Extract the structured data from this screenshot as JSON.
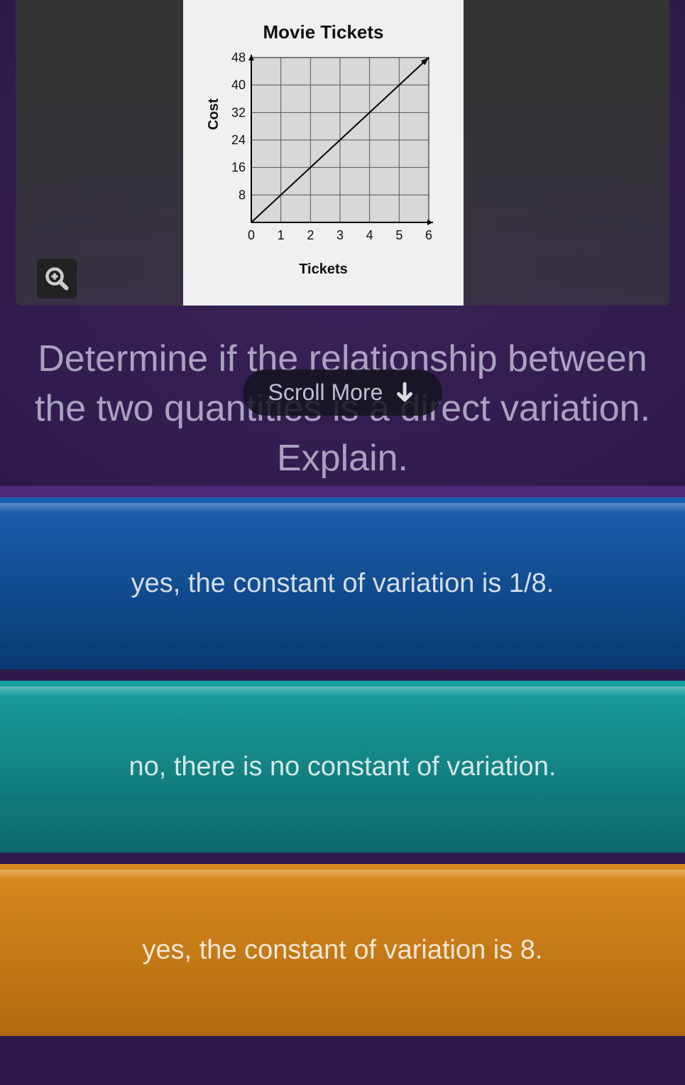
{
  "chart": {
    "type": "line",
    "title": "Movie Tickets",
    "xlabel": "Tickets",
    "ylabel": "Cost",
    "xlim": [
      0,
      6
    ],
    "ylim": [
      0,
      48
    ],
    "xticks": [
      0,
      1,
      2,
      3,
      4,
      5,
      6
    ],
    "yticks": [
      8,
      16,
      24,
      32,
      40,
      48
    ],
    "xtick_labels": [
      "0",
      "1",
      "2",
      "3",
      "4",
      "5",
      "6"
    ],
    "ytick_labels": [
      "8",
      "16",
      "24",
      "32",
      "40",
      "48"
    ],
    "line_points": [
      [
        0,
        0
      ],
      [
        6,
        48
      ]
    ],
    "grid_color": "#555555",
    "line_color": "#000000",
    "background_color": "#f0f0f0",
    "plot_bg_color": "#d8d8d8",
    "line_width": 2,
    "tick_fontsize": 18,
    "label_fontsize": 20,
    "title_fontsize": 26,
    "has_arrow": true
  },
  "question": {
    "text": "Determine if the relationship between the two quantities is a direct variation. Explain."
  },
  "scroll_more": {
    "label": "Scroll More"
  },
  "answers": [
    {
      "text": "yes, the constant of variation is 1/8.",
      "color": "blue"
    },
    {
      "text": "no, there is no constant of variation.",
      "color": "teal"
    },
    {
      "text": "yes, the constant of variation is 8.",
      "color": "orange"
    }
  ],
  "theme": {
    "bg_color": "#2d1a4a",
    "gap_color": "#4d2a7a",
    "answer_blue": [
      "#1b5fb0",
      "#0a3a72"
    ],
    "answer_teal": [
      "#1a9e9e",
      "#0d6868"
    ],
    "answer_orange": [
      "#d98a1e",
      "#b06a10"
    ]
  }
}
